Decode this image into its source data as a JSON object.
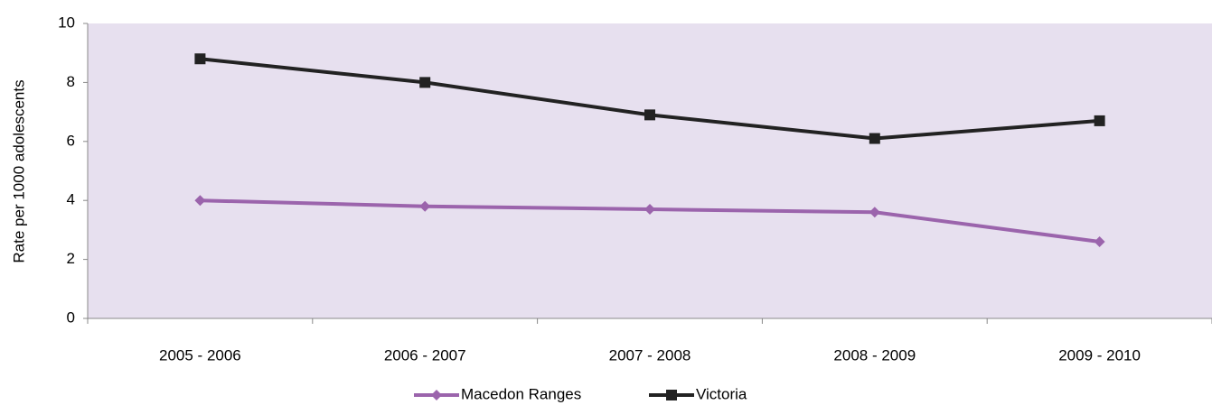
{
  "chart_data": {
    "type": "line",
    "y_label": "Rate per 1000 adolescents",
    "categories": [
      "2005 - 2006",
      "2006 - 2007",
      "2007 - 2008",
      "2008 - 2009",
      "2009 - 2010"
    ],
    "series": [
      {
        "name": "Macedon Ranges",
        "color": "#9b64ac",
        "marker": "diamond",
        "values": [
          4.0,
          3.8,
          3.7,
          3.6,
          2.6
        ]
      },
      {
        "name": "Victoria",
        "color": "#222222",
        "marker": "square",
        "values": [
          8.8,
          8.0,
          6.9,
          6.1,
          6.7
        ]
      }
    ],
    "ylim": [
      0,
      10
    ],
    "yticks": [
      0,
      2,
      4,
      6,
      8,
      10
    ],
    "grid": false,
    "legend": "bottom"
  }
}
